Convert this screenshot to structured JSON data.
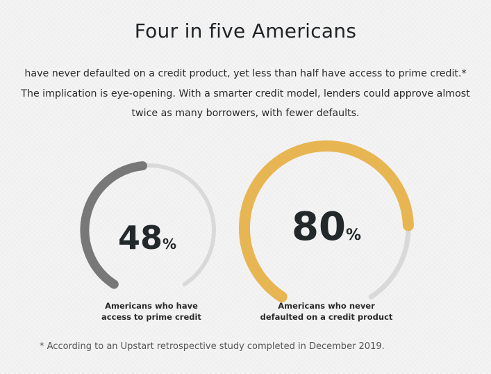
{
  "title": "Four in five Americans",
  "intro": "have never defaulted on a credit product, yet less than half have access to prime credit.* The implication is eye-opening. With a smarter credit model, lenders could approve almost twice as many borrowers, with fewer defaults.",
  "chart_data": {
    "type": "gauge",
    "range": [
      0,
      100
    ],
    "gauges": [
      {
        "value": 48,
        "label": "48",
        "unit": "%",
        "caption_lines": [
          "Americans who have",
          "access to prime credit"
        ],
        "color": "#787878",
        "track_color": "#d9d9d9"
      },
      {
        "value": 80,
        "label": "80",
        "unit": "%",
        "caption_lines": [
          "Americans who never",
          "defaulted on a credit product"
        ],
        "color": "#e8b553",
        "track_color": "#d9d9d9"
      }
    ]
  },
  "footnote": "* According to an Upstart retrospective study completed in December 2019."
}
